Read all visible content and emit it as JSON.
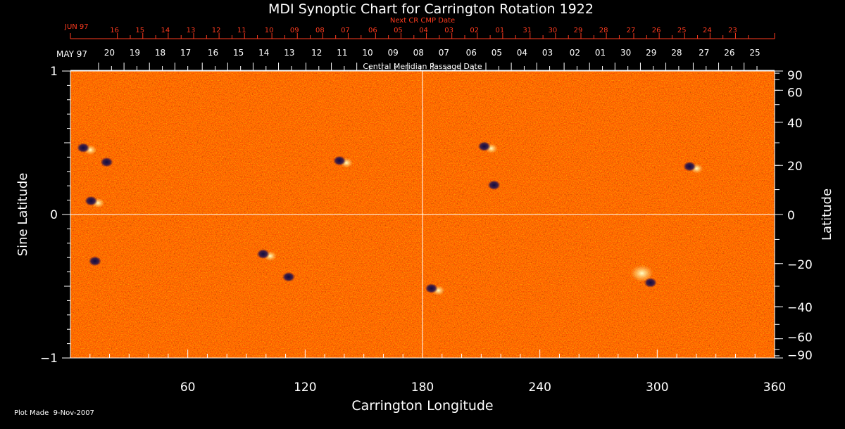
{
  "chart_data": {
    "type": "heatmap",
    "title": "MDI Synoptic Chart for Carrington Rotation 1922",
    "xlabel": "Carrington Longitude",
    "ylabel_left": "Sine Latitude",
    "ylabel_right": "Latitude",
    "top_axis_label": "Central Meridian Passage Date",
    "next_axis_label": "Next CR CMP Date",
    "footer": "Plot Made  9-Nov-2007",
    "xlim": [
      0,
      360
    ],
    "ylim": [
      -1,
      1
    ],
    "x_ticks": [
      60,
      120,
      180,
      240,
      300,
      360
    ],
    "left_ticks": [
      {
        "v": 1,
        "label": "1"
      },
      {
        "v": 0,
        "label": "0"
      },
      {
        "v": -1,
        "label": "−1"
      }
    ],
    "right_ticks": [
      {
        "lat": 90,
        "label": "90"
      },
      {
        "lat": 60,
        "label": "60"
      },
      {
        "lat": 40,
        "label": "40"
      },
      {
        "lat": 20,
        "label": "20"
      },
      {
        "lat": 0,
        "label": "0"
      },
      {
        "lat": -20,
        "label": "−20"
      },
      {
        "lat": -40,
        "label": "−40"
      },
      {
        "lat": -60,
        "label": "−60"
      },
      {
        "lat": -90,
        "label": "−90"
      }
    ],
    "date_month_label": "MAY 97",
    "dates": [
      {
        "label": "20",
        "x": 21
      },
      {
        "label": "19",
        "x": 34
      },
      {
        "label": "18",
        "x": 47
      },
      {
        "label": "17",
        "x": 60
      },
      {
        "label": "16",
        "x": 74
      },
      {
        "label": "15",
        "x": 87
      },
      {
        "label": "14",
        "x": 100
      },
      {
        "label": "13",
        "x": 113
      },
      {
        "label": "12",
        "x": 127
      },
      {
        "label": "11",
        "x": 140
      },
      {
        "label": "10",
        "x": 153
      },
      {
        "label": "09",
        "x": 166
      },
      {
        "label": "08",
        "x": 179
      },
      {
        "label": "07",
        "x": 192
      },
      {
        "label": "06",
        "x": 206
      },
      {
        "label": "05",
        "x": 219
      },
      {
        "label": "04",
        "x": 232
      },
      {
        "label": "03",
        "x": 245
      },
      {
        "label": "02",
        "x": 259
      },
      {
        "label": "01",
        "x": 272
      },
      {
        "label": "30",
        "x": 285
      },
      {
        "label": "29",
        "x": 298
      },
      {
        "label": "28",
        "x": 311
      },
      {
        "label": "27",
        "x": 325
      },
      {
        "label": "26",
        "x": 338
      },
      {
        "label": "25",
        "x": 351
      }
    ],
    "next_month_label": "JUN 97",
    "next_dates": [
      {
        "label": "16",
        "x": 24
      },
      {
        "label": "15",
        "x": 37
      },
      {
        "label": "14",
        "x": 50
      },
      {
        "label": "13",
        "x": 63
      },
      {
        "label": "12",
        "x": 76
      },
      {
        "label": "11",
        "x": 89
      },
      {
        "label": "10",
        "x": 103
      },
      {
        "label": "09",
        "x": 116
      },
      {
        "label": "08",
        "x": 129
      },
      {
        "label": "07",
        "x": 142
      },
      {
        "label": "06",
        "x": 156
      },
      {
        "label": "05",
        "x": 169
      },
      {
        "label": "04",
        "x": 182
      },
      {
        "label": "03",
        "x": 195
      },
      {
        "label": "02",
        "x": 208
      },
      {
        "label": "01",
        "x": 221
      },
      {
        "label": "31",
        "x": 235
      },
      {
        "label": "30",
        "x": 248
      },
      {
        "label": "29",
        "x": 261
      },
      {
        "label": "28",
        "x": 274
      },
      {
        "label": "27",
        "x": 288
      },
      {
        "label": "26",
        "x": 301
      },
      {
        "label": "25",
        "x": 314
      },
      {
        "label": "24",
        "x": 327
      },
      {
        "label": "23",
        "x": 340
      }
    ],
    "active_regions": [
      {
        "lon": 8,
        "sinlat": 0.46,
        "polarity": "mixed"
      },
      {
        "lon": 20,
        "sinlat": 0.36,
        "polarity": "negative"
      },
      {
        "lon": 12,
        "sinlat": 0.09,
        "polarity": "mixed"
      },
      {
        "lon": 139,
        "sinlat": 0.37,
        "polarity": "mixed"
      },
      {
        "lon": 213,
        "sinlat": 0.47,
        "polarity": "mixed"
      },
      {
        "lon": 218,
        "sinlat": 0.2,
        "polarity": "negative"
      },
      {
        "lon": 318,
        "sinlat": 0.33,
        "polarity": "mixed"
      },
      {
        "lon": 186,
        "sinlat": -0.52,
        "polarity": "mixed"
      },
      {
        "lon": 290,
        "sinlat": -0.4,
        "polarity": "positive"
      },
      {
        "lon": 298,
        "sinlat": -0.48,
        "polarity": "negative"
      },
      {
        "lon": 14,
        "sinlat": -0.33,
        "polarity": "negative"
      },
      {
        "lon": 100,
        "sinlat": -0.28,
        "polarity": "mixed"
      },
      {
        "lon": 113,
        "sinlat": -0.44,
        "polarity": "negative"
      }
    ],
    "colors": {
      "background": "#ff5000",
      "positive": "#ffffa0",
      "negative": "#10104a",
      "axis": "#ffffff",
      "next_axis": "#ff3b1f"
    }
  }
}
